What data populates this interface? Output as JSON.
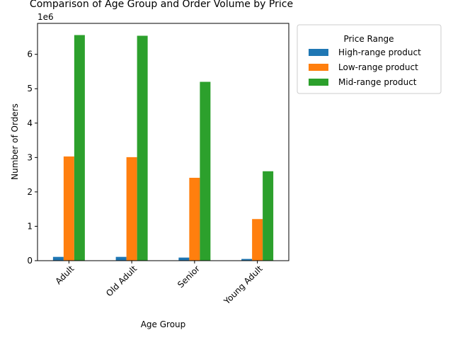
{
  "chart_data": {
    "type": "bar",
    "title": "Comparison of Age Group and Order Volume by Price",
    "xlabel": "Age Group",
    "ylabel": "Number of Orders",
    "offset_text": "1e6",
    "categories": [
      "Adult",
      "Old Adult",
      "Senior",
      "Young Adult"
    ],
    "series": [
      {
        "name": "High-range product",
        "color": "#1f77b4",
        "values": [
          110000,
          110000,
          90000,
          50000
        ]
      },
      {
        "name": "Low-range product",
        "color": "#ff7f0e",
        "values": [
          3030000,
          3010000,
          2410000,
          1210000
        ]
      },
      {
        "name": "Mid-range product",
        "color": "#2ca02c",
        "values": [
          6560000,
          6540000,
          5200000,
          2600000
        ]
      }
    ],
    "ylim": [
      0,
      6900000
    ],
    "yticks": [
      0,
      1000000,
      2000000,
      3000000,
      4000000,
      5000000,
      6000000
    ],
    "ytick_labels": [
      "0",
      "1",
      "2",
      "3",
      "4",
      "5",
      "6"
    ],
    "legend": {
      "title": "Price Range",
      "placement": "outside-upper-right"
    },
    "grid": false,
    "xtick_rotation": 45
  }
}
